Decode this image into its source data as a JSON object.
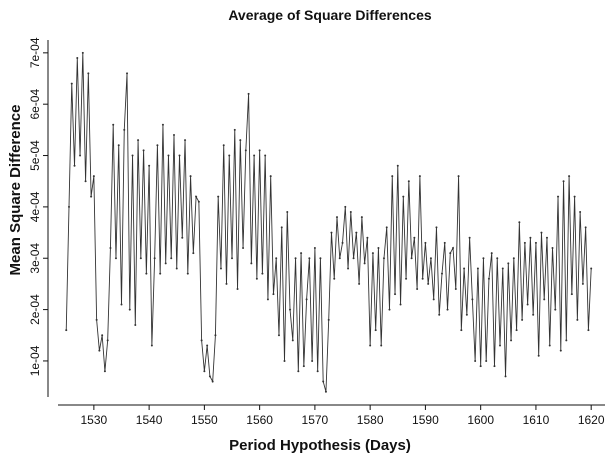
{
  "chart_data": {
    "type": "line",
    "title": "Average of Square Differences",
    "xlabel": "Period Hypothesis (Days)",
    "ylabel": "Mean Square Difference",
    "x": [
      1525,
      1525.5,
      1526,
      1526.5,
      1527,
      1527.5,
      1528,
      1528.5,
      1529,
      1529.5,
      1530,
      1530.5,
      1531,
      1531.5,
      1532,
      1532.5,
      1533,
      1533.5,
      1534,
      1534.5,
      1535,
      1535.5,
      1536,
      1536.5,
      1537,
      1537.5,
      1538,
      1538.5,
      1539,
      1539.5,
      1540,
      1540.5,
      1541,
      1541.5,
      1542,
      1542.5,
      1543,
      1543.5,
      1544,
      1544.5,
      1545,
      1545.5,
      1546,
      1546.5,
      1547,
      1547.5,
      1548,
      1548.5,
      1549,
      1549.5,
      1550,
      1550.5,
      1551,
      1551.5,
      1552,
      1552.5,
      1553,
      1553.5,
      1554,
      1554.5,
      1555,
      1555.5,
      1556,
      1556.5,
      1557,
      1557.5,
      1558,
      1558.5,
      1559,
      1559.5,
      1560,
      1560.5,
      1561,
      1561.5,
      1562,
      1562.5,
      1563,
      1563.5,
      1564,
      1564.5,
      1565,
      1565.5,
      1566,
      1566.5,
      1567,
      1567.5,
      1568,
      1568.5,
      1569,
      1569.5,
      1570,
      1570.5,
      1571,
      1571.5,
      1572,
      1572.5,
      1573,
      1573.5,
      1574,
      1574.5,
      1575,
      1575.5,
      1576,
      1576.5,
      1577,
      1577.5,
      1578,
      1578.5,
      1579,
      1579.5,
      1580,
      1580.5,
      1581,
      1581.5,
      1582,
      1582.5,
      1583,
      1583.5,
      1584,
      1584.5,
      1585,
      1585.5,
      1586,
      1586.5,
      1587,
      1587.5,
      1588,
      1588.5,
      1589,
      1589.5,
      1590,
      1590.5,
      1591,
      1591.5,
      1592,
      1592.5,
      1593,
      1593.5,
      1594,
      1594.5,
      1595,
      1595.5,
      1596,
      1596.5,
      1597,
      1597.5,
      1598,
      1598.5,
      1599,
      1599.5,
      1600,
      1600.5,
      1601,
      1601.5,
      1602,
      1602.5,
      1603,
      1603.5,
      1604,
      1604.5,
      1605,
      1605.5,
      1606,
      1606.5,
      1607,
      1607.5,
      1608,
      1608.5,
      1609,
      1609.5,
      1610,
      1610.5,
      1611,
      1611.5,
      1612,
      1612.5,
      1613,
      1613.5,
      1614,
      1614.5,
      1615,
      1615.5,
      1616,
      1616.5,
      1617,
      1617.5,
      1618,
      1618.5,
      1619,
      1619.5,
      1620
    ],
    "series": [
      {
        "color": "#333333",
        "values": [
          0.00016,
          0.0004,
          0.00064,
          0.00048,
          0.00069,
          0.0005,
          0.0007,
          0.00045,
          0.00066,
          0.00042,
          0.00046,
          0.00018,
          0.00012,
          0.00015,
          8e-05,
          0.00014,
          0.00032,
          0.00056,
          0.0003,
          0.00052,
          0.00021,
          0.00055,
          0.00066,
          0.0002,
          0.0005,
          0.00017,
          0.00053,
          0.0003,
          0.00051,
          0.00027,
          0.00048,
          0.00013,
          0.0003,
          0.00052,
          0.00027,
          0.00056,
          0.00029,
          0.0005,
          0.0003,
          0.00054,
          0.00028,
          0.0005,
          0.00034,
          0.00053,
          0.00027,
          0.00046,
          0.00031,
          0.00042,
          0.00041,
          0.00014,
          8e-05,
          0.00013,
          7e-05,
          6e-05,
          0.00015,
          0.00042,
          0.00028,
          0.00052,
          0.00025,
          0.0005,
          0.0003,
          0.00055,
          0.00024,
          0.00053,
          0.00032,
          0.00051,
          0.00062,
          0.00029,
          0.0005,
          0.00026,
          0.00051,
          0.00027,
          0.0005,
          0.00022,
          0.00046,
          0.00023,
          0.0003,
          0.00015,
          0.00036,
          0.0001,
          0.00039,
          0.0002,
          0.00014,
          0.0003,
          8e-05,
          0.00031,
          9e-05,
          0.00022,
          0.0003,
          0.0001,
          0.00032,
          8e-05,
          0.0003,
          6e-05,
          4e-05,
          0.00018,
          0.00035,
          0.00026,
          0.00038,
          0.0003,
          0.00033,
          0.0004,
          0.00028,
          0.00039,
          0.0003,
          0.00035,
          0.00025,
          0.00038,
          0.00029,
          0.00034,
          0.00013,
          0.00031,
          0.00016,
          0.00032,
          0.00013,
          0.0003,
          0.00036,
          0.0002,
          0.00046,
          0.00023,
          0.00048,
          0.00021,
          0.00042,
          0.00026,
          0.00045,
          0.0003,
          0.00034,
          0.00024,
          0.00046,
          0.00026,
          0.00033,
          0.00025,
          0.0003,
          0.00022,
          0.00036,
          0.00019,
          0.00027,
          0.00033,
          0.0002,
          0.00031,
          0.00032,
          0.00024,
          0.00046,
          0.00016,
          0.00028,
          0.00019,
          0.00034,
          0.00022,
          0.0001,
          0.00028,
          9e-05,
          0.0003,
          0.0001,
          0.00026,
          0.00031,
          9e-05,
          0.0003,
          0.00013,
          0.00028,
          7e-05,
          0.00029,
          0.00014,
          0.0003,
          0.00016,
          0.00037,
          0.00018,
          0.00033,
          0.00021,
          0.00034,
          0.00019,
          0.00033,
          0.00011,
          0.00035,
          0.00022,
          0.00034,
          0.00013,
          0.00032,
          0.0002,
          0.00042,
          0.00012,
          0.00045,
          0.00014,
          0.00046,
          0.00023,
          0.00042,
          0.00018,
          0.00039,
          0.00025,
          0.00036,
          0.00016,
          0.00028
        ]
      }
    ],
    "xlim": [
      1521.7,
      1622.5
    ],
    "xticks": [
      1530,
      1540,
      1550,
      1560,
      1570,
      1580,
      1590,
      1600,
      1610,
      1620
    ],
    "ylim": [
      1.42e-05,
      0.000725
    ],
    "yticks": [
      {
        "value": 0.0001,
        "label": "1e-04"
      },
      {
        "value": 0.0002,
        "label": "2e-04"
      },
      {
        "value": 0.0003,
        "label": "3e-04"
      },
      {
        "value": 0.0004,
        "label": "4e-04"
      },
      {
        "value": 0.0005,
        "label": "5e-04"
      },
      {
        "value": 0.0006,
        "label": "6e-04"
      },
      {
        "value": 0.0007,
        "label": "7e-04"
      }
    ]
  }
}
